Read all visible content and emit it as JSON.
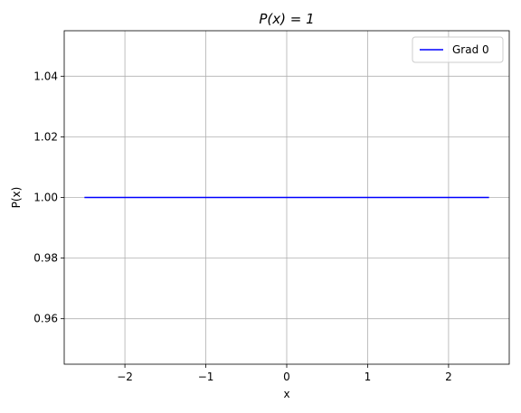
{
  "chart_data": {
    "type": "line",
    "title": "P(x) = 1",
    "xlabel": "x",
    "ylabel": "P(x)",
    "xlim": [
      -2.75,
      2.75
    ],
    "ylim": [
      0.945,
      1.055
    ],
    "x_ticks": [
      -2,
      -1,
      0,
      1,
      2
    ],
    "x_tick_labels": [
      "−2",
      "−1",
      "0",
      "1",
      "2"
    ],
    "y_ticks": [
      0.96,
      0.98,
      1.0,
      1.02,
      1.04
    ],
    "y_tick_labels": [
      "0.96",
      "0.98",
      "1.00",
      "1.02",
      "1.04"
    ],
    "grid": true,
    "legend_position": "top-right",
    "series": [
      {
        "name": "Grad 0",
        "color": "#0000ff",
        "x": [
          -2.5,
          2.5
        ],
        "y": [
          1.0,
          1.0
        ]
      }
    ]
  }
}
